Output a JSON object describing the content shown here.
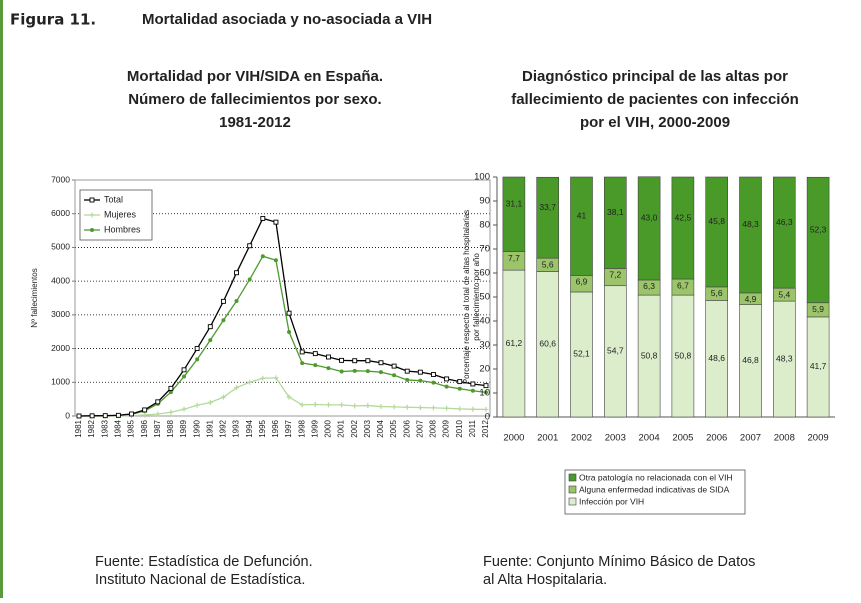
{
  "figure": {
    "label": "Figura 11.",
    "title": "Mortalidad asociada y no-asociada a VIH"
  },
  "chart_data": [
    {
      "type": "line",
      "title": [
        "Mortalidad por VIH/SIDA en España.",
        "Número de fallecimientos por sexo.",
        "1981-2012"
      ],
      "ylabel": "Nº fallecimientos",
      "categories": [
        "1981",
        "1982",
        "1983",
        "1984",
        "1985",
        "1986",
        "1987",
        "1988",
        "1989",
        "1990",
        "1991",
        "1992",
        "1993",
        "1994",
        "1995",
        "1996",
        "1997",
        "1998",
        "1999",
        "2000",
        "2001",
        "2002",
        "2003",
        "2004",
        "2005",
        "2006",
        "2007",
        "2008",
        "2009",
        "2010",
        "2011",
        "2012"
      ],
      "series": [
        {
          "name": "Total",
          "color": "#000000",
          "values": [
            0,
            5,
            10,
            20,
            60,
            180,
            420,
            820,
            1370,
            2000,
            2650,
            3400,
            4250,
            5050,
            5860,
            5750,
            3050,
            1900,
            1850,
            1750,
            1650,
            1640,
            1640,
            1580,
            1480,
            1330,
            1300,
            1230,
            1100,
            1020,
            950,
            900
          ]
        },
        {
          "name": "Mujeres",
          "color": "#b5d99c",
          "values": [
            0,
            0,
            0,
            5,
            10,
            30,
            60,
            110,
            200,
            320,
            400,
            560,
            840,
            1000,
            1120,
            1130,
            560,
            330,
            340,
            330,
            330,
            300,
            310,
            280,
            270,
            260,
            250,
            240,
            230,
            210,
            200,
            195
          ]
        },
        {
          "name": "Hombres",
          "color": "#4e9a2e",
          "values": [
            0,
            5,
            10,
            15,
            50,
            150,
            360,
            710,
            1170,
            1680,
            2250,
            2840,
            3410,
            4050,
            4740,
            4620,
            2490,
            1570,
            1510,
            1420,
            1320,
            1340,
            1330,
            1300,
            1210,
            1070,
            1050,
            990,
            870,
            810,
            750,
            700
          ]
        }
      ],
      "ylim": [
        0,
        7000
      ],
      "yticks": [
        0,
        1000,
        2000,
        3000,
        4000,
        5000,
        6000,
        7000
      ],
      "grid": true,
      "legend": "top-left",
      "source": [
        "Fuente: Estadística de Defunción.",
        "Instituto Nacional de Estadística."
      ]
    },
    {
      "type": "bar",
      "stacked": true,
      "title": [
        "Diagnóstico principal de las altas por",
        "fallecimiento de pacientes con infección",
        "por el VIH, 2000-2009"
      ],
      "ylabel": [
        "Porcentaje respecto al total de altas hospitalarias",
        "por fallecimiento por año"
      ],
      "categories": [
        "2000",
        "2001",
        "2002",
        "2003",
        "2004",
        "2005",
        "2006",
        "2007",
        "2008",
        "2009"
      ],
      "series": [
        {
          "name": "Infección por VIH",
          "color": "#dcedcc",
          "values": [
            61.2,
            60.6,
            52.1,
            54.7,
            50.8,
            50.8,
            48.6,
            46.8,
            48.3,
            41.7
          ],
          "value_labels": [
            "61,2",
            "60,6",
            "52,1",
            "54,7",
            "50,8",
            "50,8",
            "48,6",
            "46,8",
            "48,3",
            "41,7"
          ]
        },
        {
          "name": "Alguna enfermedad indicativas de SIDA",
          "color": "#9cc46a",
          "values": [
            7.7,
            5.6,
            6.9,
            7.2,
            6.3,
            6.7,
            5.6,
            4.9,
            5.4,
            5.9
          ],
          "value_labels": [
            "7,7",
            "5,6",
            "6,9",
            "7,2",
            "6,3",
            "6,7",
            "5,6",
            "4,9",
            "5,4",
            "5,9"
          ]
        },
        {
          "name": "Otra patología no relacionada con el VIH",
          "color": "#4a9a2a",
          "values": [
            31.1,
            33.7,
            41,
            38.1,
            43.0,
            42.5,
            45.8,
            48.3,
            46.3,
            52.3
          ],
          "value_labels": [
            "31,1",
            "33,7",
            "41",
            "38,1",
            "43,0",
            "42,5",
            "45,8",
            "48,3",
            "46,3",
            "52,3"
          ]
        }
      ],
      "ylim": [
        0,
        100
      ],
      "yticks": [
        0,
        10,
        20,
        30,
        40,
        50,
        60,
        70,
        80,
        90,
        100
      ],
      "grid": false,
      "legend": "bottom",
      "source": [
        "Fuente: Conjunto Mínimo Básico de Datos",
        "al Alta Hospitalaria."
      ]
    }
  ]
}
